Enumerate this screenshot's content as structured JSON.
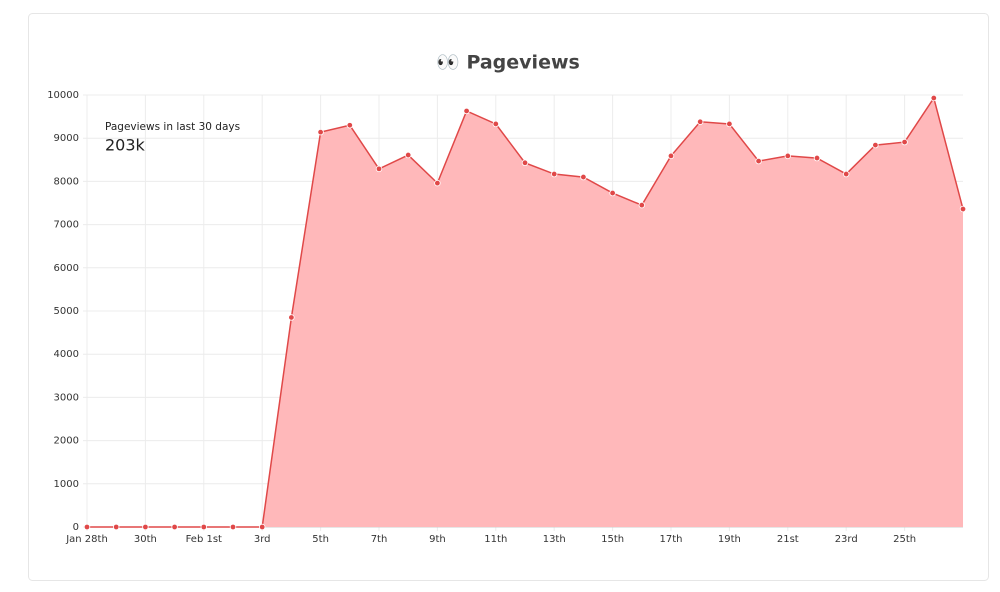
{
  "chart_data": {
    "type": "area",
    "title": "👀 Pageviews",
    "annotation": "Pageviews in last 30 days",
    "annotation_value": "203k",
    "categories": [
      "Jan 28th",
      null,
      "30th",
      null,
      "Feb 1st",
      null,
      "3rd",
      null,
      "5th",
      null,
      "7th",
      null,
      "9th",
      null,
      "11th",
      null,
      "13th",
      null,
      "15th",
      null,
      "17th",
      null,
      "19th",
      null,
      "21st",
      null,
      "23rd",
      null,
      "25th",
      null,
      null
    ],
    "series": [
      {
        "name": "Pageviews",
        "color": "#e04848",
        "fill": "#ffb8ba",
        "values": [
          0,
          0,
          0,
          0,
          0,
          0,
          0,
          4850,
          9140,
          9300,
          8290,
          8610,
          7960,
          9630,
          9330,
          8430,
          8170,
          8100,
          7730,
          7450,
          8590,
          9380,
          9330,
          8470,
          8590,
          8540,
          8170,
          8840,
          8910,
          9930,
          7360
        ]
      }
    ],
    "ylim": [
      0,
      10000
    ],
    "yticks": [
      0,
      1000,
      2000,
      3000,
      4000,
      5000,
      6000,
      7000,
      8000,
      9000,
      10000
    ],
    "grid": true
  }
}
